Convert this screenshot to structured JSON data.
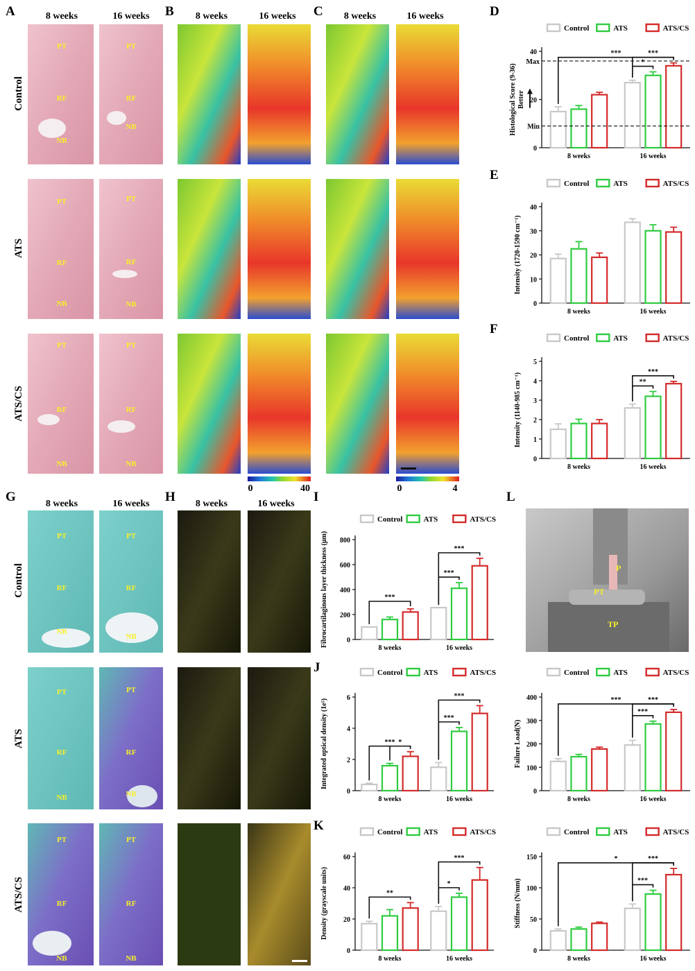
{
  "panel_letters": [
    "A",
    "B",
    "C",
    "D",
    "E",
    "F",
    "G",
    "H",
    "I",
    "J",
    "K",
    "L"
  ],
  "col_8w": "8 weeks",
  "col_16w": "16 weeks",
  "row_labels": [
    "Control",
    "ATS",
    "ATS/CS"
  ],
  "zone_labels": {
    "pt": "PT",
    "rf": "RF",
    "nb": "NB"
  },
  "colorbar_b": {
    "min": "0",
    "max": "40"
  },
  "colorbar_c": {
    "min": "0",
    "max": "4"
  },
  "photo_labels": {
    "p": "P",
    "pt": "PT",
    "tp": "TP"
  },
  "legend": [
    "Control",
    "ATS",
    "ATS/CS"
  ],
  "colors": {
    "control": "#c8c8c8",
    "ats": "#2ecc40",
    "atscs": "#d42a2a",
    "he_bg": "#e3a9b5",
    "safo_bg": "#6cc6c0",
    "safo_purple": "#7a5cc0"
  },
  "chart_data": [
    {
      "id": "D",
      "type": "bar",
      "ylabel": "Histological Score (9-36)",
      "yticks": [
        0,
        20,
        40
      ],
      "ylim": [
        0,
        40
      ],
      "categories": [
        "8 weeks",
        "16 weeks"
      ],
      "series": [
        {
          "name": "Control",
          "values": [
            15,
            27
          ]
        },
        {
          "name": "ATS",
          "values": [
            16,
            30
          ]
        },
        {
          "name": "ATS/CS",
          "values": [
            22,
            34
          ]
        }
      ],
      "errors": [
        [
          2,
          1
        ],
        [
          1.5,
          1.5
        ],
        [
          1,
          1.2
        ]
      ],
      "annotations": {
        "max_line": {
          "value": 36,
          "label": "Max"
        },
        "min_line": {
          "value": 9,
          "label": "Min"
        },
        "better_label": "Better",
        "sig": [
          "***",
          "*",
          "***"
        ]
      }
    },
    {
      "id": "E",
      "type": "bar",
      "ylabel": "Intensity (1720-1590 cm⁻¹)",
      "yticks": [
        0,
        10,
        20,
        30,
        40
      ],
      "ylim": [
        0,
        40
      ],
      "categories": [
        "8 weeks",
        "16 weeks"
      ],
      "series": [
        {
          "name": "Control",
          "values": [
            18.5,
            33.5
          ]
        },
        {
          "name": "ATS",
          "values": [
            22.5,
            30
          ]
        },
        {
          "name": "ATS/CS",
          "values": [
            19,
            29.5
          ]
        }
      ],
      "errors": [
        [
          1.8,
          1.5
        ],
        [
          3,
          2.5
        ],
        [
          1.8,
          2
        ]
      ],
      "sig": []
    },
    {
      "id": "F",
      "type": "bar",
      "ylabel": "Intensity (1140-985 cm⁻¹)",
      "yticks": [
        0,
        1,
        2,
        3,
        4,
        5
      ],
      "ylim": [
        0,
        5
      ],
      "categories": [
        "8 weeks",
        "16 weeks"
      ],
      "series": [
        {
          "name": "Control",
          "values": [
            1.5,
            2.6
          ]
        },
        {
          "name": "ATS",
          "values": [
            1.8,
            3.2
          ]
        },
        {
          "name": "ATS/CS",
          "values": [
            1.8,
            3.85
          ]
        }
      ],
      "errors": [
        [
          0.28,
          0.2
        ],
        [
          0.22,
          0.25
        ],
        [
          0.2,
          0.12
        ]
      ],
      "sig": [
        "**",
        "***"
      ]
    },
    {
      "id": "I",
      "type": "bar",
      "ylabel": "Fibrocartilaginous layer thickness (μm)",
      "yticks": [
        0,
        200,
        400,
        600,
        800
      ],
      "ylim": [
        0,
        800
      ],
      "categories": [
        "8 weeks",
        "16 weeks"
      ],
      "series": [
        {
          "name": "Control",
          "values": [
            100,
            255
          ]
        },
        {
          "name": "ATS",
          "values": [
            160,
            410
          ]
        },
        {
          "name": "ATS/CS",
          "values": [
            220,
            590
          ]
        }
      ],
      "errors": [
        [
          0,
          0
        ],
        [
          20,
          45
        ],
        [
          25,
          60
        ]
      ],
      "sig": [
        "***",
        "***",
        "***"
      ]
    },
    {
      "id": "J",
      "type": "bar",
      "ylabel": "Integrated optical density (1e⁵)",
      "yticks": [
        0,
        2,
        4,
        6
      ],
      "ylim": [
        0,
        6
      ],
      "categories": [
        "8 weeks",
        "16 weeks"
      ],
      "series": [
        {
          "name": "Control",
          "values": [
            0.4,
            1.5
          ]
        },
        {
          "name": "ATS",
          "values": [
            1.6,
            3.8
          ]
        },
        {
          "name": "ATS/CS",
          "values": [
            2.2,
            4.95
          ]
        }
      ],
      "errors": [
        [
          0.08,
          0.3
        ],
        [
          0.15,
          0.25
        ],
        [
          0.3,
          0.5
        ]
      ],
      "sig": [
        "***",
        "*",
        "***",
        "***"
      ]
    },
    {
      "id": "J2",
      "type": "bar",
      "ylabel": "Failure Load(N)",
      "yticks": [
        0,
        100,
        200,
        300,
        400
      ],
      "ylim": [
        0,
        400
      ],
      "categories": [
        "8 weeks",
        "16 weeks"
      ],
      "series": [
        {
          "name": "Control",
          "values": [
            125,
            195
          ]
        },
        {
          "name": "ATS",
          "values": [
            145,
            285
          ]
        },
        {
          "name": "ATS/CS",
          "values": [
            178,
            335
          ]
        }
      ],
      "errors": [
        [
          12,
          20
        ],
        [
          10,
          12
        ],
        [
          8,
          12
        ]
      ],
      "sig": [
        "***",
        "***",
        "***"
      ]
    },
    {
      "id": "K",
      "type": "bar",
      "ylabel": "Density (grayscale units)",
      "yticks": [
        0,
        20,
        40,
        60
      ],
      "ylim": [
        0,
        60
      ],
      "categories": [
        "8 weeks",
        "16 weeks"
      ],
      "series": [
        {
          "name": "Control",
          "values": [
            17,
            25
          ]
        },
        {
          "name": "ATS",
          "values": [
            22,
            34
          ]
        },
        {
          "name": "ATS/CS",
          "values": [
            27,
            45
          ]
        }
      ],
      "errors": [
        [
          1.5,
          3
        ],
        [
          4,
          2.5
        ],
        [
          3.5,
          8
        ]
      ],
      "sig": [
        "**",
        "*",
        "***"
      ]
    },
    {
      "id": "K2",
      "type": "bar",
      "ylabel": "Stiffness (N/mm)",
      "yticks": [
        0,
        50,
        100,
        150
      ],
      "ylim": [
        0,
        150
      ],
      "categories": [
        "8 weeks",
        "16 weeks"
      ],
      "series": [
        {
          "name": "Control",
          "values": [
            31,
            67
          ]
        },
        {
          "name": "ATS",
          "values": [
            34,
            90
          ]
        },
        {
          "name": "ATS/CS",
          "values": [
            43,
            121
          ]
        }
      ],
      "errors": [
        [
          3,
          7
        ],
        [
          3,
          6
        ],
        [
          2,
          10
        ]
      ],
      "sig": [
        "*",
        "***",
        "***"
      ]
    }
  ]
}
